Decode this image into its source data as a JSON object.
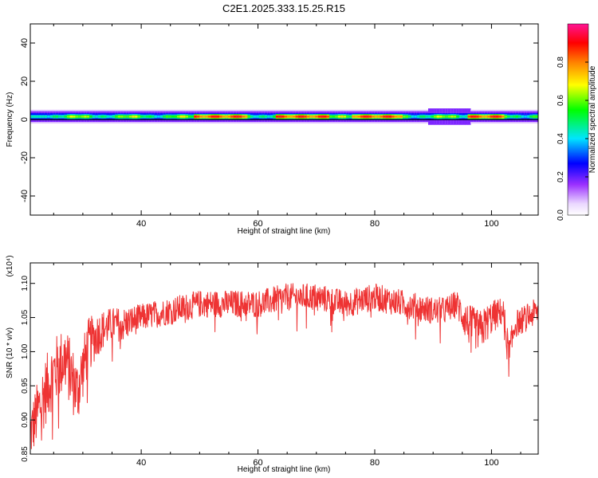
{
  "title": "C2E1.2025.333.15.25.R15",
  "chart_data": [
    {
      "type": "heatmap",
      "xlabel": "Height of straight line (km)",
      "ylabel": "Frequency (Hz)",
      "xlim": [
        21,
        108
      ],
      "ylim": [
        -50,
        50
      ],
      "x_ticks": [
        40,
        60,
        80,
        100
      ],
      "y_ticks": [
        -40,
        -20,
        0,
        20,
        40
      ],
      "colorbar": {
        "label": "Normalized spectral amplitude",
        "range": [
          0,
          1
        ],
        "ticks": [
          "0.0",
          "0.2",
          "0.4",
          "0.6",
          "0.8"
        ],
        "tick_values": [
          0,
          0.2,
          0.4,
          0.6,
          0.8
        ],
        "colormap": "rainbow (white-violet-blue-cyan-green-yellow-orange-red-magenta)"
      },
      "band": {
        "center_hz": 1.5,
        "half_width_hz": 3,
        "baseline_hz": 0,
        "strong_regions_km": [
          [
            49,
            58
          ],
          [
            63,
            72
          ],
          [
            76,
            85
          ],
          [
            96,
            102
          ]
        ],
        "broad_feature_km": [
          89,
          96
        ]
      }
    },
    {
      "type": "line",
      "xlabel": "Height of straight line (km)",
      "ylabel": "SNR (10 * v/v)",
      "y_multiplier": "(x10⁴)",
      "xlim": [
        21,
        108
      ],
      "ylim": [
        0.85,
        1.13
      ],
      "x_ticks": [
        40,
        60,
        80,
        100
      ],
      "y_ticks": [
        0.85,
        0.9,
        0.95,
        1.0,
        1.05,
        1.1
      ],
      "y_tick_labels": [
        "0.85",
        "0.90",
        "0.95",
        "1.00",
        "1.05",
        "1.10"
      ],
      "series_color": "#ee3333",
      "x": [
        21,
        23,
        25,
        27,
        29,
        31,
        33,
        35,
        37,
        40,
        45,
        50,
        55,
        60,
        65,
        70,
        75,
        80,
        85,
        90,
        92,
        94,
        96,
        98,
        100,
        102,
        103,
        104,
        106,
        108
      ],
      "values": [
        0.88,
        0.93,
        0.97,
        0.99,
        0.94,
        1.01,
        1.03,
        1.04,
        1.04,
        1.05,
        1.06,
        1.07,
        1.07,
        1.07,
        1.08,
        1.08,
        1.07,
        1.08,
        1.07,
        1.06,
        1.06,
        1.07,
        1.04,
        1.03,
        1.05,
        1.06,
        0.99,
        1.04,
        1.05,
        1.06
      ],
      "noise_amplitude": [
        0.04,
        0.05,
        0.05,
        0.05,
        0.05,
        0.04,
        0.03,
        0.025,
        0.025,
        0.02,
        0.02,
        0.02,
        0.02,
        0.02,
        0.02,
        0.02,
        0.02,
        0.02,
        0.02,
        0.02,
        0.02,
        0.02,
        0.03,
        0.03,
        0.025,
        0.02,
        0.03,
        0.02,
        0.02,
        0.02
      ]
    }
  ]
}
